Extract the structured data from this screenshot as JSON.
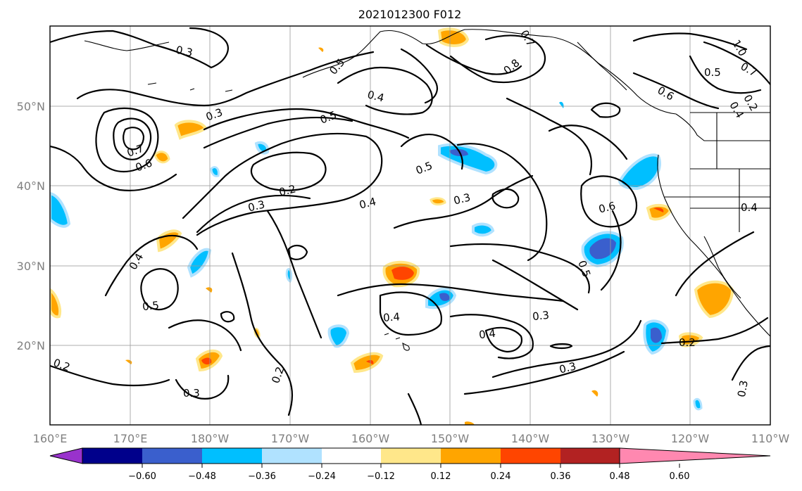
{
  "title": "2021012300 F012",
  "lon_labels": [
    "160°E",
    "170°E",
    "180°W",
    "170°W",
    "160°W",
    "150°W",
    "140°W",
    "130°W",
    "120°W",
    "110°W"
  ],
  "lat_labels": [
    "50°N",
    "40°N",
    "30°N",
    "20°N"
  ],
  "colorbar": {
    "ticks": [
      "−0.60",
      "−0.48",
      "−0.36",
      "−0.24",
      "−0.12",
      "0.12",
      "0.24",
      "0.36",
      "0.48",
      "0.60"
    ],
    "colors": [
      "#9932cc",
      "#00008b",
      "#3a5fcd",
      "#00bfff",
      "#b0e2ff",
      "#ffffff",
      "#ffe78a",
      "#ffa500",
      "#ff4500",
      "#b22222",
      "#ff88b0"
    ]
  },
  "contour_labels": [
    "0.3",
    "0.3",
    "0.5",
    "0.4",
    "0.8",
    "0.7",
    "0.5",
    "0.7",
    "0.6",
    "0.4",
    "0.3",
    "1.0",
    "0.7",
    "0.6",
    "0.5",
    "0.2",
    "0.3",
    "0.4",
    "0.5",
    "0.3",
    "0.6",
    "0.4",
    "0.5",
    "0.4",
    "0.3",
    "0.4",
    "0.3",
    "0.2",
    "0.2",
    "0.3",
    "0.2",
    "0.2",
    "0.5",
    "0.4"
  ],
  "contour_color": "#000000",
  "grid_color": "#9a9a9a"
}
